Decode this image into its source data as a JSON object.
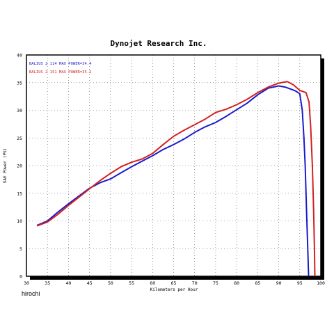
{
  "chart_data": {
    "type": "line",
    "title": "Dynojet  Research  Inc.",
    "xlabel": "Kilometers per Hour",
    "ylabel": "SAE Power (PS)",
    "xlim": [
      30,
      100
    ],
    "ylim": [
      0,
      40
    ],
    "x_ticks": [
      30,
      35,
      40,
      45,
      50,
      55,
      60,
      65,
      70,
      75,
      80,
      85,
      90,
      95,
      100
    ],
    "y_ticks": [
      0,
      5,
      10,
      15,
      20,
      25,
      30,
      35,
      40
    ],
    "grid": "dotted",
    "legend_position": "top-left",
    "series": [
      {
        "name": "BALIUS 2 114  MAX POWER=34.4",
        "color": "#1a1acc",
        "points": [
          [
            32.5,
            9.2
          ],
          [
            35,
            10
          ],
          [
            37.5,
            11.6
          ],
          [
            40,
            13.1
          ],
          [
            42.5,
            14.5
          ],
          [
            45,
            15.9
          ],
          [
            47.5,
            16.9
          ],
          [
            50,
            17.6
          ],
          [
            52.5,
            18.7
          ],
          [
            55,
            19.8
          ],
          [
            57.5,
            20.8
          ],
          [
            60,
            21.8
          ],
          [
            62.5,
            22.9
          ],
          [
            65,
            23.8
          ],
          [
            67.5,
            24.8
          ],
          [
            70,
            26.0
          ],
          [
            72.5,
            27.0
          ],
          [
            75,
            27.8
          ],
          [
            77.5,
            28.9
          ],
          [
            80,
            30.1
          ],
          [
            82.5,
            31.3
          ],
          [
            85,
            32.8
          ],
          [
            87.5,
            34.0
          ],
          [
            90,
            34.4
          ],
          [
            91.5,
            34.2
          ],
          [
            93,
            33.8
          ],
          [
            94,
            33.5
          ],
          [
            95,
            33.0
          ],
          [
            95.6,
            30
          ],
          [
            96,
            25
          ],
          [
            96.3,
            20
          ],
          [
            96.6,
            12
          ],
          [
            96.9,
            5
          ],
          [
            97.1,
            0
          ]
        ]
      },
      {
        "name": "BALIUS 2 151  MAX POWER=35.2",
        "color": "#d42020",
        "points": [
          [
            32.5,
            9.1
          ],
          [
            35,
            9.8
          ],
          [
            37.5,
            11.2
          ],
          [
            40,
            12.8
          ],
          [
            42.5,
            14.3
          ],
          [
            45,
            15.8
          ],
          [
            47.5,
            17.3
          ],
          [
            50,
            18.6
          ],
          [
            52.5,
            19.8
          ],
          [
            55,
            20.6
          ],
          [
            57.5,
            21.2
          ],
          [
            60,
            22.2
          ],
          [
            62.5,
            23.8
          ],
          [
            65,
            25.3
          ],
          [
            67.5,
            26.4
          ],
          [
            70,
            27.4
          ],
          [
            72.5,
            28.4
          ],
          [
            75,
            29.6
          ],
          [
            77.5,
            30.2
          ],
          [
            80,
            31.0
          ],
          [
            82.5,
            32.0
          ],
          [
            85,
            33.2
          ],
          [
            87.5,
            34.2
          ],
          [
            90,
            34.9
          ],
          [
            92,
            35.2
          ],
          [
            93.5,
            34.6
          ],
          [
            95,
            33.6
          ],
          [
            96.5,
            33.2
          ],
          [
            97.2,
            31.5
          ],
          [
            97.6,
            27
          ],
          [
            98,
            20
          ],
          [
            98.3,
            12
          ],
          [
            98.5,
            5
          ],
          [
            98.6,
            0
          ]
        ]
      }
    ]
  },
  "credit": "hirochi"
}
